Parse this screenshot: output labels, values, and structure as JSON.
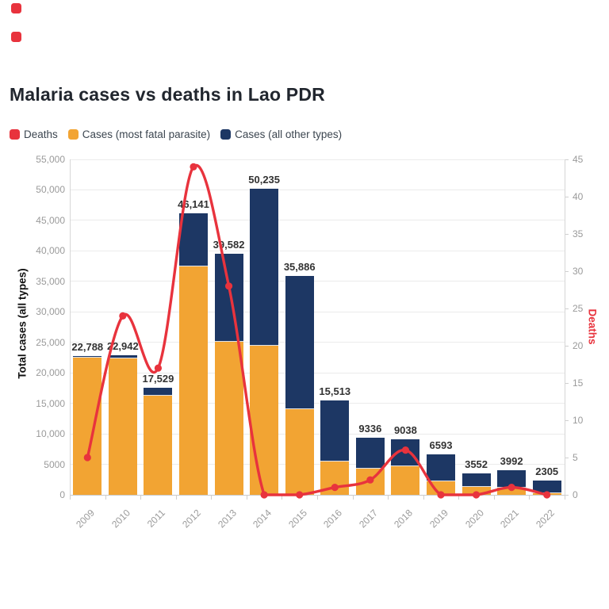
{
  "page": {
    "background": "#ffffff"
  },
  "decorations": {
    "top_left_icons": [
      "red-rounded-square-icon",
      "red-rounded-square-icon"
    ],
    "icon_color": "#e8333d"
  },
  "chart_data": {
    "type": "combo: stacked bar + line",
    "title": "Malaria cases vs deaths in Lao PDR",
    "categories": [
      "2009",
      "2010",
      "2011",
      "2012",
      "2013",
      "2014",
      "2015",
      "2016",
      "2017",
      "2018",
      "2019",
      "2020",
      "2021",
      "2022"
    ],
    "series": [
      {
        "name": "Deaths",
        "type": "line",
        "axis": "right",
        "color": "#e8333d",
        "values": [
          5,
          24,
          17,
          44,
          28,
          0,
          0,
          1,
          2,
          6,
          0,
          0,
          1,
          0
        ]
      },
      {
        "name": "Cases (most fatal parasite)",
        "type": "bar-stack",
        "axis": "left",
        "color": "#f2a433",
        "values": [
          22500,
          22300,
          16200,
          37500,
          25100,
          24500,
          14000,
          5500,
          4300,
          4700,
          2200,
          1300,
          1200,
          250
        ]
      },
      {
        "name": "Cases (all other types)",
        "type": "bar-stack",
        "axis": "left",
        "color": "#1d3764",
        "values": [
          288,
          642,
          1329,
          8641,
          14482,
          25735,
          21886,
          10013,
          5036,
          4338,
          4393,
          2252,
          2792,
          2055
        ]
      }
    ],
    "stack_totals": [
      22788,
      22942,
      17529,
      46141,
      39582,
      50235,
      35886,
      15513,
      9336,
      9038,
      6593,
      3552,
      3992,
      2305
    ],
    "stack_total_labels": [
      "22,788",
      "22,942",
      "17,529",
      "46,141",
      "39,582",
      "50,235",
      "35,886",
      "15,513",
      "9336",
      "9038",
      "6593",
      "3552",
      "3992",
      "2305"
    ],
    "left_axis": {
      "title": "Total cases (all types)",
      "min": 0,
      "max": 55000,
      "tick_interval": 5000,
      "tick_labels": [
        "0",
        "5000",
        "10,000",
        "15,000",
        "20,000",
        "25,000",
        "30,000",
        "35,000",
        "40,000",
        "45,000",
        "50,000",
        "55,000"
      ]
    },
    "right_axis": {
      "title": "Deaths",
      "title_color": "#e8333d",
      "min": 0,
      "max": 45,
      "tick_interval": 5,
      "tick_labels": [
        "0",
        "5",
        "10",
        "15",
        "20",
        "25",
        "30",
        "35",
        "40",
        "45"
      ]
    },
    "legend_position": "top-left",
    "grid": true
  }
}
